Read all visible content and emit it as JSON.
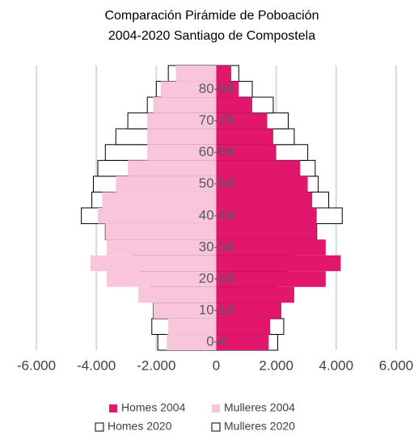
{
  "chart_data": {
    "type": "pyramid",
    "title": "Comparación Pirámide de Poboación",
    "subtitle": "2004-2020 Santiago de Compostela",
    "categories": [
      "0-4",
      null,
      "10-14",
      null,
      "20-24",
      null,
      "30-34",
      null,
      "40-44",
      null,
      "50-54",
      null,
      "60-64",
      null,
      "70-74",
      null,
      "80-84",
      null
    ],
    "series": [
      {
        "name": "Homes 2004",
        "color": "#e0176d",
        "style": "filled",
        "values": [
          1750,
          1800,
          2150,
          2600,
          3650,
          4150,
          3650,
          3350,
          3350,
          3200,
          3050,
          2800,
          2000,
          1900,
          1700,
          1200,
          750,
          500
        ]
      },
      {
        "name": "Mulleres 2004",
        "color": "#f9c5db",
        "style": "filled",
        "values": [
          -1650,
          -1600,
          -2100,
          -2600,
          -3650,
          -4200,
          -3650,
          -3700,
          -3950,
          -3800,
          -3350,
          -2950,
          -2300,
          -2300,
          -2300,
          -2100,
          -1850,
          -1350
        ]
      },
      {
        "name": "Homes 2020",
        "color": "#000000",
        "style": "outline",
        "values": [
          2050,
          2250,
          2150,
          2050,
          2050,
          2400,
          2600,
          3350,
          4200,
          3750,
          3400,
          3300,
          3050,
          2600,
          2400,
          1900,
          1200,
          750
        ]
      },
      {
        "name": "Mulleres 2020",
        "color": "#000000",
        "style": "outline",
        "values": [
          -1950,
          -2150,
          -2100,
          -1900,
          -2200,
          -2550,
          -2800,
          -3700,
          -4500,
          -4150,
          -4100,
          -3950,
          -3700,
          -3350,
          -2950,
          -2300,
          -2000,
          -1600
        ]
      }
    ],
    "xlim": [
      -6000,
      6000
    ],
    "xticks": [
      {
        "value": -6000,
        "label": "-6.000"
      },
      {
        "value": -4000,
        "label": "-4.000"
      },
      {
        "value": -2000,
        "label": "-2.000"
      },
      0,
      {
        "value": 2000,
        "label": "2.000"
      },
      {
        "value": 4000,
        "label": "4.000"
      },
      {
        "value": 6000,
        "label": "6.000"
      }
    ],
    "grid": true
  }
}
